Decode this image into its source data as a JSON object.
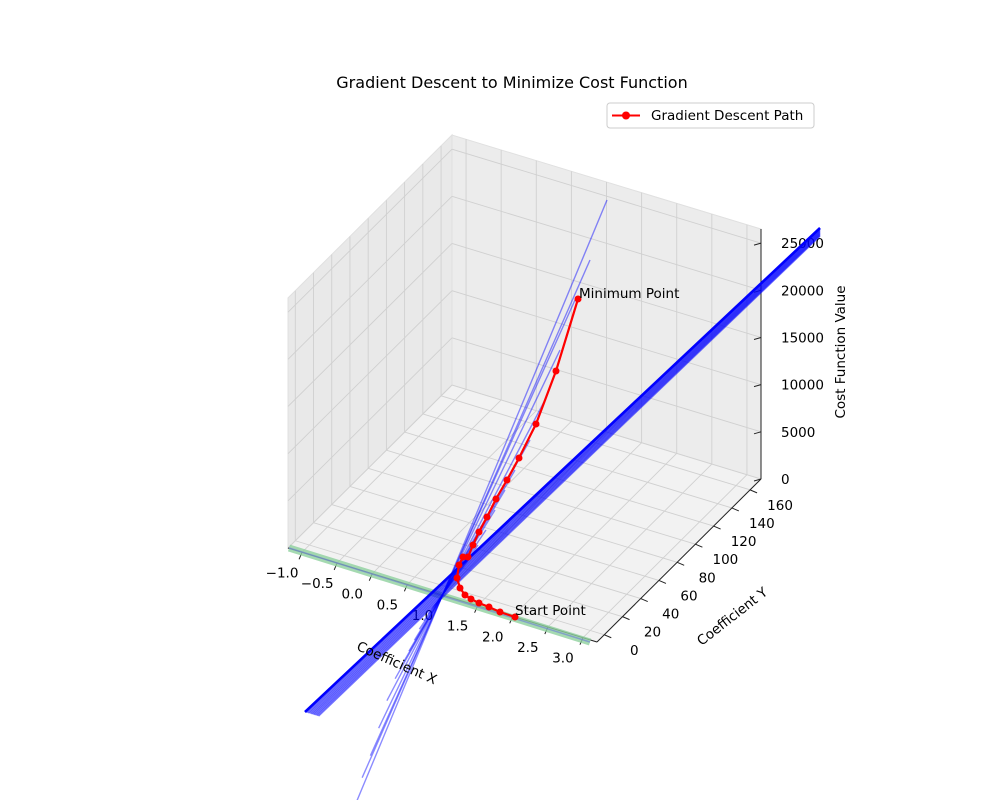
{
  "chart_data": {
    "type": "line",
    "title": "Gradient Descent to Minimize Cost Function",
    "xlabel": "Coefficient X",
    "ylabel": "Coefficient Y",
    "zlabel": "Cost Function Value",
    "x_ticks": [
      "−1.0",
      "−0.5",
      "0.0",
      "0.5",
      "1.0",
      "1.5",
      "2.0",
      "2.5",
      "3.0"
    ],
    "y_ticks": [
      "0",
      "20",
      "40",
      "60",
      "80",
      "100",
      "120",
      "140",
      "160"
    ],
    "z_ticks": [
      "0",
      "5000",
      "10000",
      "15000",
      "20000",
      "25000"
    ],
    "xlim": [
      -1.2,
      3.2
    ],
    "ylim": [
      -8,
      172
    ],
    "zlim": [
      0,
      26500
    ],
    "grid": true,
    "legend_position": "upper right",
    "series": [
      {
        "name": "Gradient Descent Path",
        "color": "#ff0000",
        "marker": "circle",
        "points": [
          {
            "x": 2.3,
            "y": 10.2,
            "z": 0
          },
          {
            "x": 2.0,
            "y": 11.5,
            "z": 0
          },
          {
            "x": 1.75,
            "y": 12.8,
            "z": 0
          },
          {
            "x": 1.55,
            "y": 14.0,
            "z": 0
          },
          {
            "x": 1.4,
            "y": 15.0,
            "z": 0
          },
          {
            "x": 1.28,
            "y": 16.0,
            "z": 0
          },
          {
            "x": 1.2,
            "y": 17.5,
            "z": 0
          },
          {
            "x": 1.15,
            "y": 20.0,
            "z": 0
          },
          {
            "x": 1.12,
            "y": 24.0,
            "z": 0
          },
          {
            "x": 1.15,
            "y": 30.0,
            "z": 0
          },
          {
            "x": 1.2,
            "y": 38.0,
            "z": 80
          },
          {
            "x": 1.3,
            "y": 46.0,
            "z": 350
          },
          {
            "x": 1.45,
            "y": 55.0,
            "z": 900
          },
          {
            "x": 1.6,
            "y": 63.0,
            "z": 1600
          },
          {
            "x": 1.8,
            "y": 73.0,
            "z": 2600
          },
          {
            "x": 2.05,
            "y": 84.0,
            "z": 4000
          },
          {
            "x": 2.35,
            "y": 96.0,
            "z": 5900
          },
          {
            "x": 2.7,
            "y": 110.0,
            "z": 9000
          },
          {
            "x": 3.1,
            "y": 127.0,
            "z": 13000
          },
          {
            "x": 3.6,
            "y": 147.0,
            "z": 18300
          }
        ]
      }
    ],
    "annotations": [
      {
        "text": "Start Point",
        "x": 2.3,
        "y": 10.2,
        "z": 0
      },
      {
        "text": "Minimum Point",
        "x": 3.6,
        "y": 147.0,
        "z": 18300
      }
    ],
    "surface_color": "#0000ff",
    "base_contour_color": "#8fd19e"
  }
}
